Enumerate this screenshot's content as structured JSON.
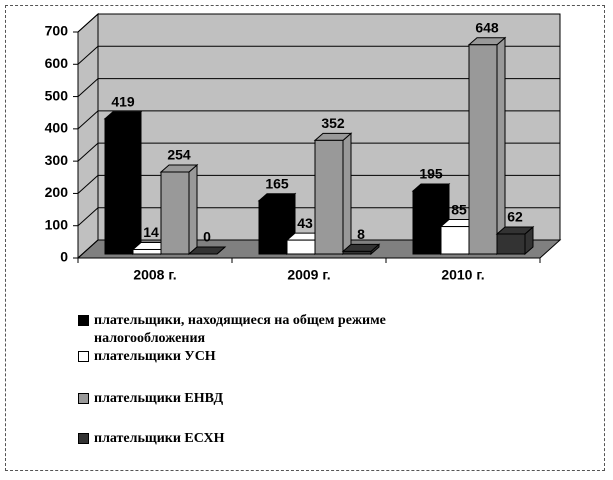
{
  "chart_data": {
    "type": "bar3d",
    "categories": [
      "2008 г.",
      "2009 г.",
      "2010 г."
    ],
    "series": [
      {
        "name": "плательщики,  находящиеся  на общем режиме налогообложения",
        "color": "#000000",
        "values": [
          419,
          165,
          195
        ]
      },
      {
        "name": "плательщики  УСН",
        "color": "#ffffff",
        "values": [
          14,
          43,
          85
        ]
      },
      {
        "name": "плательщики  ЕНВД",
        "color": "#999999",
        "values": [
          254,
          352,
          648
        ]
      },
      {
        "name": "плательщики  ЕСХН",
        "color": "#333333",
        "values": [
          0,
          8,
          62
        ]
      }
    ],
    "ylim": [
      0,
      700
    ],
    "yticks": [
      0,
      100,
      200,
      300,
      400,
      500,
      600,
      700
    ],
    "grid": true
  }
}
